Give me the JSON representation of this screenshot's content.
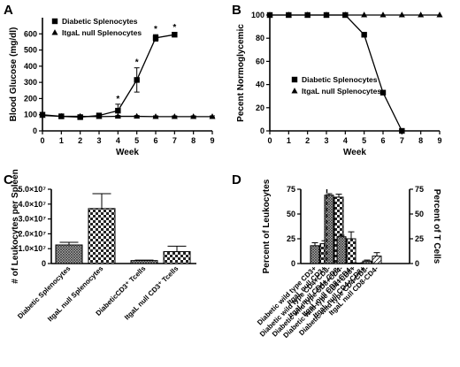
{
  "chart_data": [
    {
      "panel": "A",
      "type": "line",
      "xlabel": "Week",
      "ylabel": "Blood Glucose (mg/dl)",
      "xlim": [
        0,
        9
      ],
      "ylim": [
        0,
        700
      ],
      "xticks": [
        0,
        1,
        2,
        3,
        4,
        5,
        6,
        7,
        8,
        9
      ],
      "yticks": [
        0,
        100,
        200,
        300,
        400,
        500,
        600
      ],
      "legend_position": "top-left",
      "series": [
        {
          "name": "Diabetic Splenocytes",
          "marker": "square",
          "x": [
            0,
            1,
            2,
            3,
            4,
            5,
            6,
            7
          ],
          "y": [
            100,
            90,
            85,
            95,
            125,
            315,
            575,
            595
          ],
          "err": [
            10,
            10,
            10,
            10,
            40,
            75,
            20,
            12
          ]
        },
        {
          "name": "ItgaL null Splenocytes",
          "marker": "triangle",
          "x": [
            0,
            1,
            2,
            3,
            4,
            5,
            6,
            7,
            8,
            9
          ],
          "y": [
            95,
            90,
            90,
            88,
            90,
            90,
            88,
            88,
            88,
            88
          ],
          "err": [
            5,
            5,
            5,
            5,
            5,
            5,
            5,
            5,
            5,
            5
          ]
        }
      ],
      "significance": {
        "symbol": "*",
        "x": [
          4,
          5,
          6,
          7
        ]
      }
    },
    {
      "panel": "B",
      "type": "line",
      "xlabel": "Week",
      "ylabel": "Pecent Normoglycemic",
      "xlim": [
        0,
        9
      ],
      "ylim": [
        0,
        100
      ],
      "xticks": [
        0,
        1,
        2,
        3,
        4,
        5,
        6,
        7,
        8,
        9
      ],
      "yticks": [
        0,
        20,
        40,
        60,
        80,
        100
      ],
      "legend_position": "center-left",
      "series": [
        {
          "name": "Diabetic Splenocytes",
          "marker": "square",
          "x": [
            0,
            1,
            2,
            3,
            4,
            5,
            6,
            7
          ],
          "y": [
            100,
            100,
            100,
            100,
            100,
            83,
            33,
            0
          ]
        },
        {
          "name": "ItgaL null Splenocytes",
          "marker": "triangle",
          "x": [
            0,
            1,
            2,
            3,
            4,
            5,
            6,
            7,
            8,
            9
          ],
          "y": [
            100,
            100,
            100,
            100,
            100,
            100,
            100,
            100,
            100,
            100
          ]
        }
      ]
    },
    {
      "panel": "C",
      "type": "bar",
      "ylabel": "# of Leukocytes per Spleen",
      "ylim": [
        0,
        50000000
      ],
      "ytick_labels": [
        "0",
        "1.0×10⁷",
        "2.0×10⁷",
        "3.0×10⁷",
        "4.0×10⁷",
        "5.0×10⁷"
      ],
      "ytick_values": [
        0,
        10000000,
        20000000,
        30000000,
        40000000,
        50000000
      ],
      "categories": [
        "Diabetic Splenocytes",
        "ItgaL null Splenocytes",
        "DiabeticCD3⁺ Tcells",
        "ItgaL null CD3⁺ Tcells"
      ],
      "values": [
        12500000,
        37000000,
        2000000,
        8000000
      ],
      "err": [
        1800000,
        10000000,
        300000,
        3700000
      ],
      "patterns": [
        "dense",
        "check",
        "dense",
        "check"
      ]
    },
    {
      "panel": "D",
      "type": "bar",
      "ylabel": "Percent of Leukocytes",
      "y2label": "Percent of T Cells",
      "ylim": [
        0,
        75
      ],
      "yticks": [
        0,
        25,
        50,
        75
      ],
      "y2ticks": [
        0,
        25,
        50,
        75
      ],
      "categories": [
        "Diabetic wild type CD3+",
        "ItgaL null CD3+",
        "Diabetic wild type CD4+CD8-",
        "ItgaL null CD4+ CD8-",
        "Diabetic wild type CD8+CD4-",
        "ItgaL null CD8+CD4-",
        "Diabetic wild type CD4+CD8+",
        "ItgaL null CD4+CD8+",
        "Diabetic wild type CD4-CD8-",
        "ItgaL null CD8-CD4-"
      ],
      "values": [
        18,
        20,
        69,
        67,
        27,
        25,
        0.5,
        0.5,
        2.5,
        7.5
      ],
      "err": [
        3,
        3,
        1.5,
        3,
        1.5,
        7,
        0.3,
        0.3,
        1,
        3.5
      ],
      "patterns": [
        "dense",
        "check",
        "dense",
        "check",
        "dense",
        "check",
        "dense",
        "check",
        "dense",
        "hatch"
      ],
      "divider_after_index": 1
    }
  ]
}
